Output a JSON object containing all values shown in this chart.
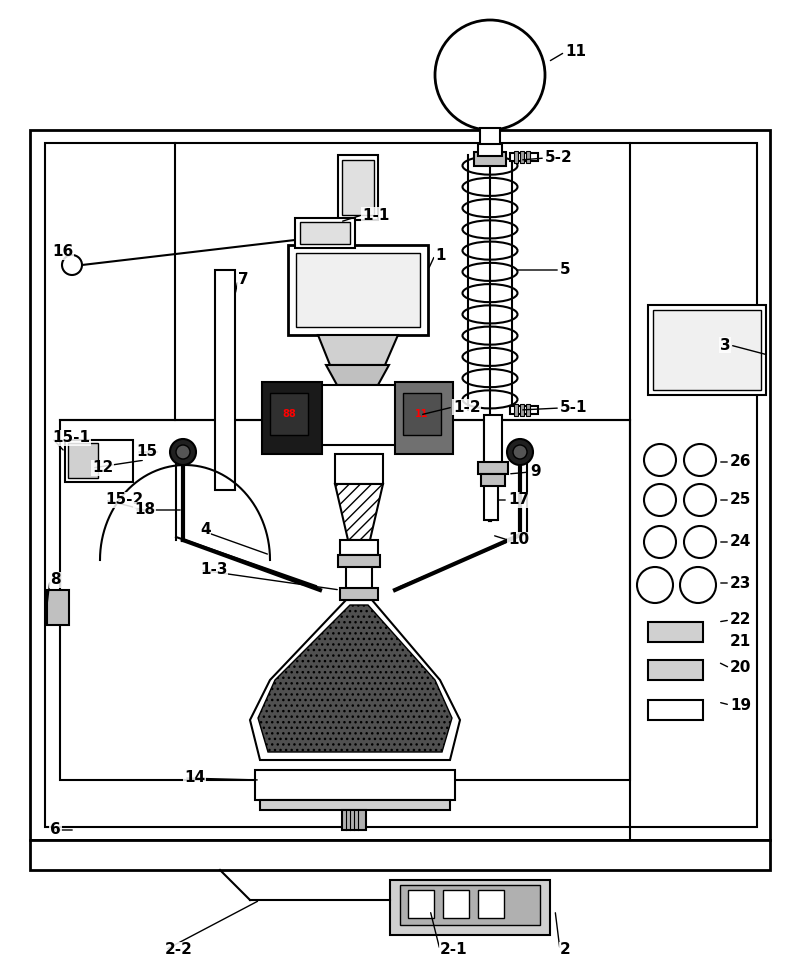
{
  "bg_color": "#ffffff",
  "lc": "#000000",
  "figsize": [
    8.0,
    9.66
  ],
  "dpi": 100
}
